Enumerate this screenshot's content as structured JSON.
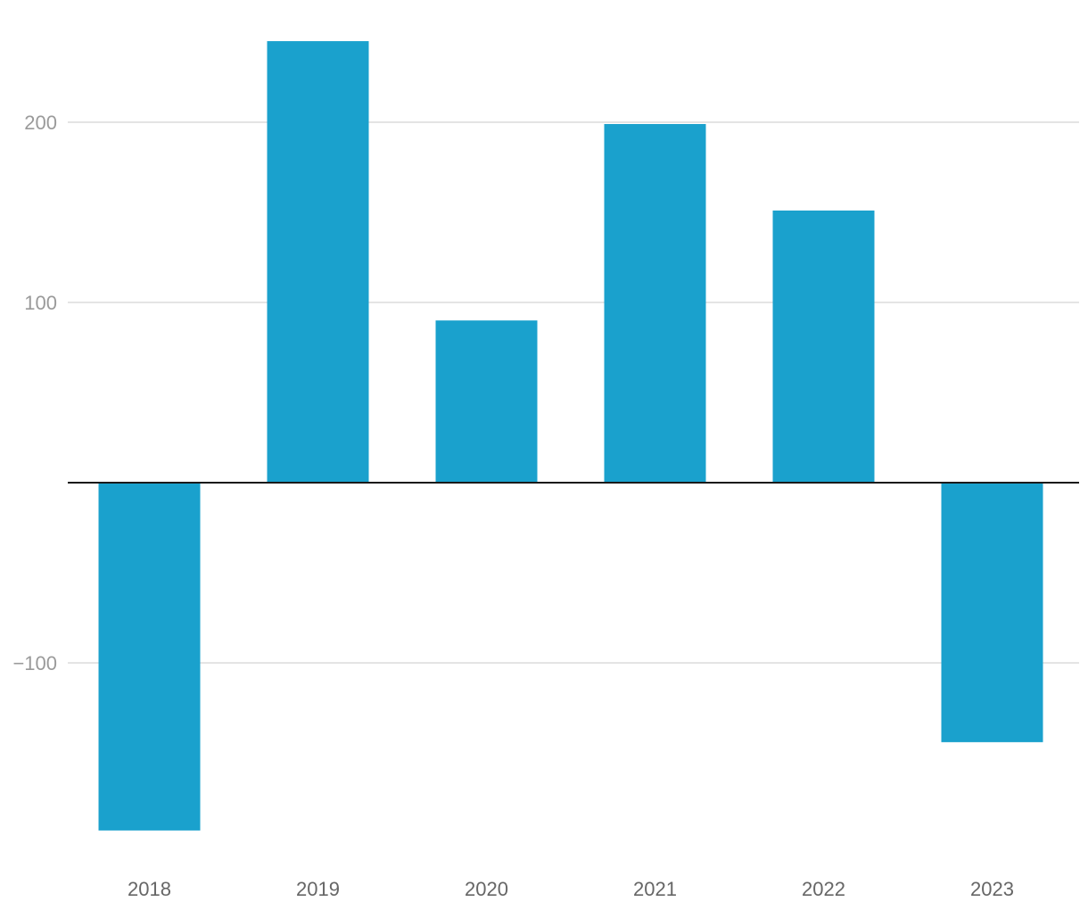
{
  "chart_data": {
    "type": "bar",
    "title": "",
    "xlabel": "",
    "ylabel": "",
    "categories": [
      "2018",
      "2019",
      "2020",
      "2021",
      "2022",
      "2023"
    ],
    "values": [
      -193,
      245,
      90,
      199,
      151,
      -144
    ],
    "ylim": [
      -206,
      262
    ],
    "yticks": [
      -100,
      100,
      200
    ],
    "ytick_labels": [
      "−100",
      "100",
      "200"
    ],
    "grid": true,
    "legend": "none",
    "colors": {
      "bar": "#1aa1cd",
      "gridline": "#dcdcdc",
      "zero_line": "#1a1a1a",
      "ytick_text": "#9a9a9a",
      "xtick_text": "#666666"
    }
  }
}
